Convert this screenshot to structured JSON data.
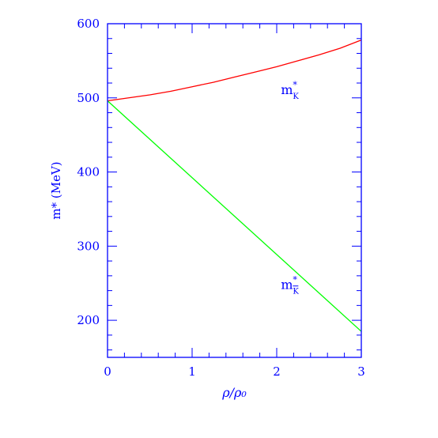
{
  "chart_data": {
    "type": "line",
    "title": "",
    "xlabel": "ρ/ρ₀",
    "ylabel": "m* (MeV)",
    "xlim": [
      0,
      3
    ],
    "ylim": [
      150,
      600
    ],
    "xticks_major": [
      0,
      1,
      2,
      3
    ],
    "yticks_major": [
      200,
      300,
      400,
      500,
      600
    ],
    "xticks_minor_step": 0.2,
    "yticks_minor_step": 20,
    "grid": false,
    "frame_color": "#0000ff",
    "series": [
      {
        "name": "m*_K",
        "label_base": "m",
        "label_sup": "*",
        "label_sub": "K",
        "label_bar": false,
        "color": "#ff0000",
        "x": [
          0,
          0.25,
          0.5,
          0.75,
          1.0,
          1.25,
          1.5,
          1.75,
          2.0,
          2.25,
          2.5,
          2.75,
          3.0
        ],
        "y": [
          496,
          500,
          504,
          509,
          515,
          521,
          528,
          535,
          542,
          550,
          558,
          567,
          578
        ]
      },
      {
        "name": "m*_K̄",
        "label_base": "m",
        "label_sup": "*",
        "label_sub": "K",
        "label_bar": true,
        "color": "#00ff00",
        "x": [
          0,
          3.0
        ],
        "y": [
          496,
          185
        ]
      }
    ],
    "annotations": [
      {
        "series": 0,
        "x": 2.05,
        "y": 505
      },
      {
        "series": 1,
        "x": 2.05,
        "y": 242
      }
    ]
  }
}
